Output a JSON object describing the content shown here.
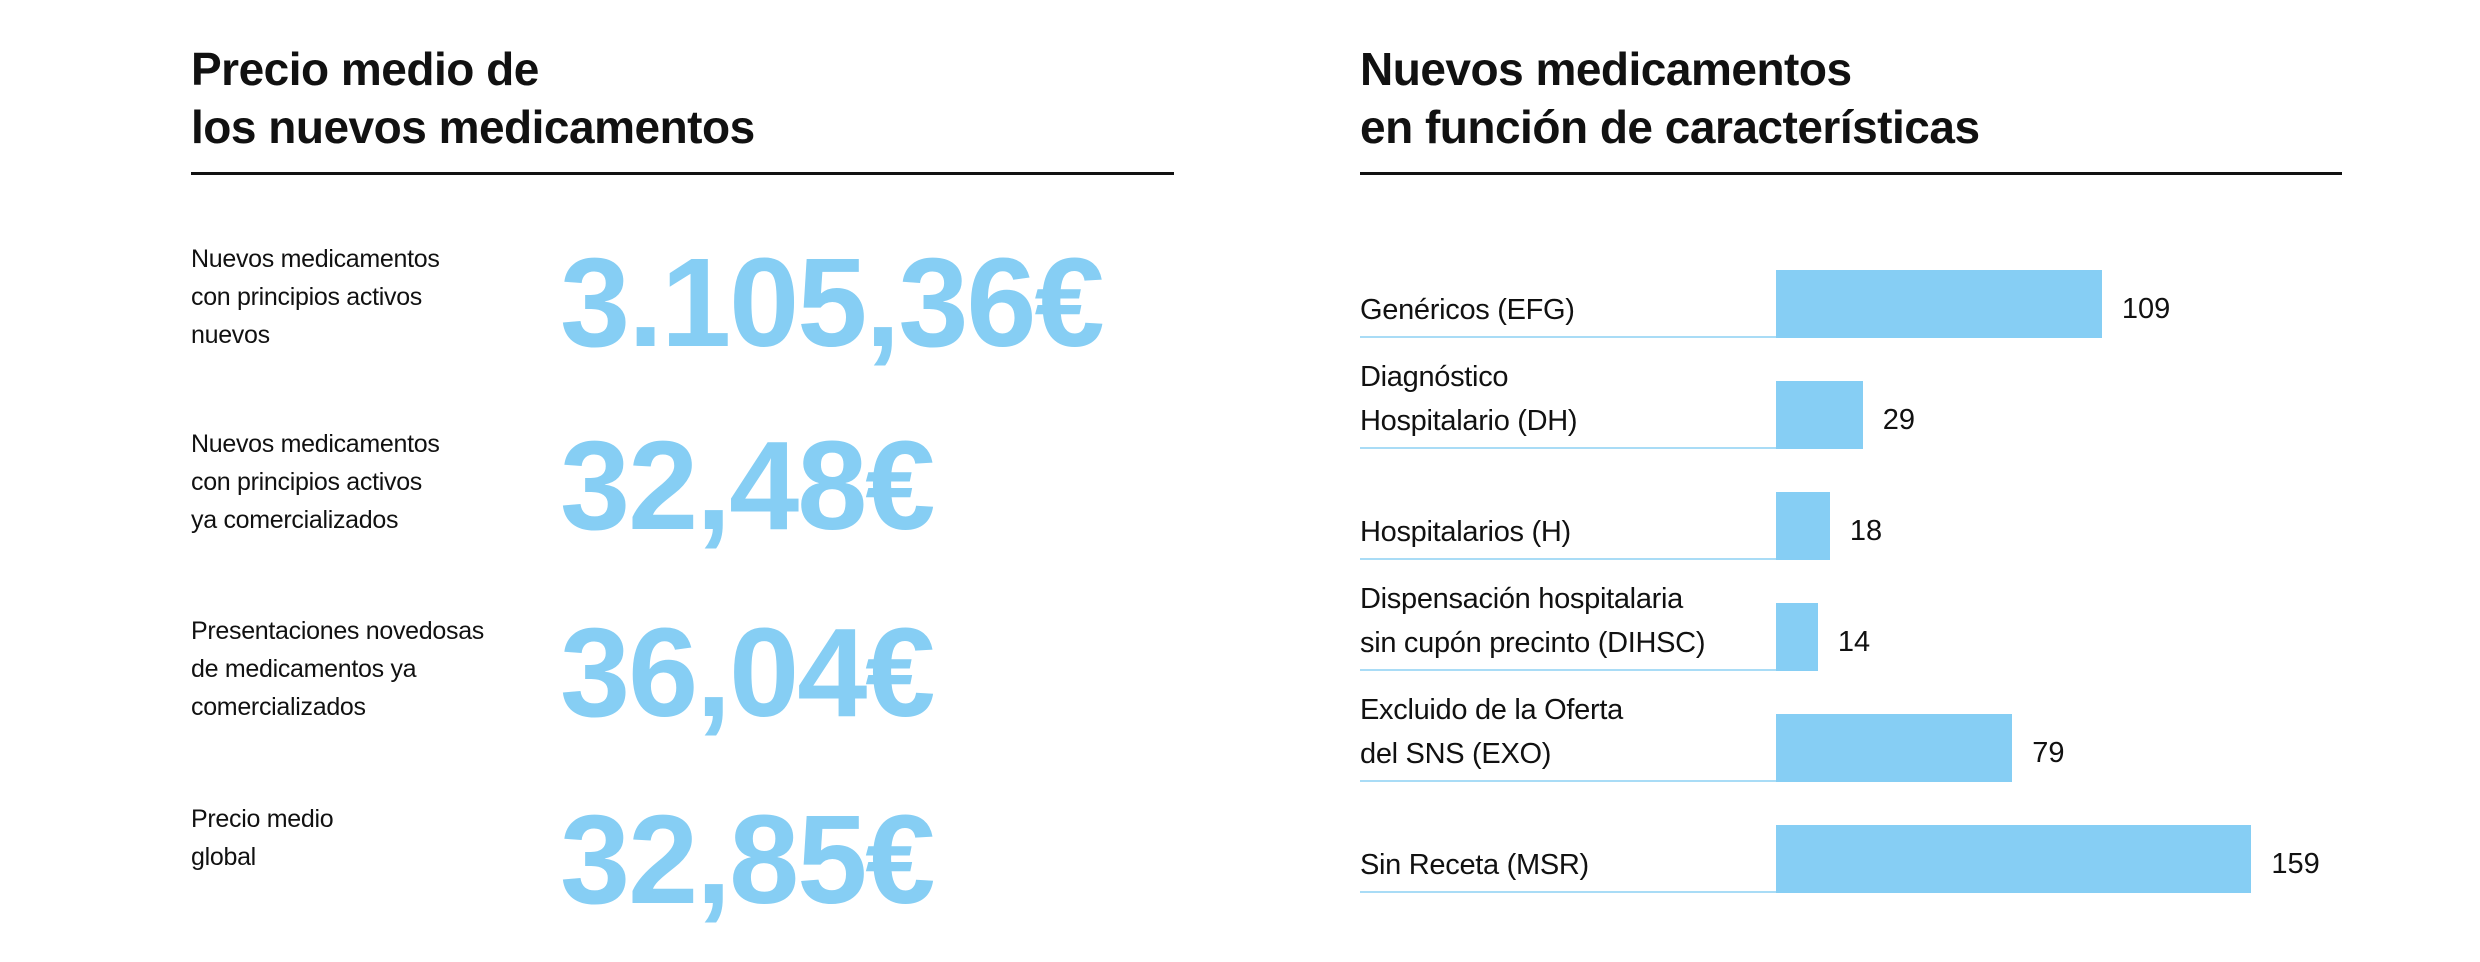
{
  "left": {
    "title_lines": [
      "Precio medio de",
      "los nuevos medicamentos"
    ],
    "items": [
      {
        "label_lines": [
          "Nuevos medicamentos",
          "con principios activos",
          "nuevos"
        ],
        "value": "3.105,36€"
      },
      {
        "label_lines": [
          "Nuevos medicamentos",
          "con principios activos",
          "ya comercializados"
        ],
        "value": "32,48€"
      },
      {
        "label_lines": [
          "Presentaciones novedosas",
          "de medicamentos ya",
          "comercializados"
        ],
        "value": "36,04€"
      },
      {
        "label_lines": [
          "Precio medio",
          "global"
        ],
        "value": "32,85€"
      }
    ]
  },
  "colors": {
    "accent": "#86CEF4",
    "text": "#111111"
  },
  "chart_data": {
    "type": "bar",
    "orientation": "horizontal",
    "title_lines": [
      "Nuevos medicamentos",
      "en función de características"
    ],
    "categories": [
      [
        "Genéricos (EFG)"
      ],
      [
        "Diagnóstico",
        "Hospitalario (DH)"
      ],
      [
        "Hospitalarios (H)"
      ],
      [
        "Dispensación hospitalaria",
        "sin cupón precinto (DIHSC)"
      ],
      [
        "Excluido de la Oferta",
        "del SNS (EXO)"
      ],
      [
        "Sin Receta (MSR)"
      ]
    ],
    "values": [
      109,
      29,
      18,
      14,
      79,
      159
    ],
    "value_labels": [
      "109",
      "29",
      "18",
      "14",
      "79",
      "159"
    ],
    "grid": false,
    "legend": "none"
  }
}
